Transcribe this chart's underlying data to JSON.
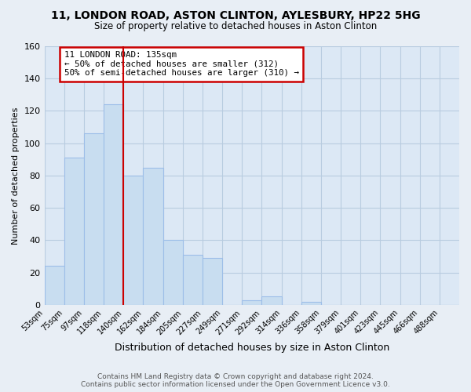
{
  "title": "11, LONDON ROAD, ASTON CLINTON, AYLESBURY, HP22 5HG",
  "subtitle": "Size of property relative to detached houses in Aston Clinton",
  "xlabel": "Distribution of detached houses by size in Aston Clinton",
  "ylabel": "Number of detached properties",
  "bin_labels": [
    "53sqm",
    "75sqm",
    "97sqm",
    "118sqm",
    "140sqm",
    "162sqm",
    "184sqm",
    "205sqm",
    "227sqm",
    "249sqm",
    "271sqm",
    "292sqm",
    "314sqm",
    "336sqm",
    "358sqm",
    "379sqm",
    "401sqm",
    "423sqm",
    "445sqm",
    "466sqm",
    "488sqm"
  ],
  "bar_heights": [
    24,
    91,
    106,
    124,
    80,
    85,
    40,
    31,
    29,
    0,
    3,
    5,
    0,
    2,
    0,
    0,
    0,
    0,
    0,
    0,
    0
  ],
  "bar_color": "#c8ddf0",
  "bar_edge_color": "#9dbee8",
  "vline_color": "#cc0000",
  "annotation_text": "11 LONDON ROAD: 135sqm\n← 50% of detached houses are smaller (312)\n50% of semi-detached houses are larger (310) →",
  "annotation_box_color": "#ffffff",
  "annotation_box_edge_color": "#cc0000",
  "ylim": [
    0,
    160
  ],
  "yticks": [
    0,
    20,
    40,
    60,
    80,
    100,
    120,
    140,
    160
  ],
  "footer_text": "Contains HM Land Registry data © Crown copyright and database right 2024.\nContains public sector information licensed under the Open Government Licence v3.0.",
  "fig_background_color": "#e8eef5",
  "plot_background_color": "#dce8f5",
  "grid_color": "#b8cce0"
}
